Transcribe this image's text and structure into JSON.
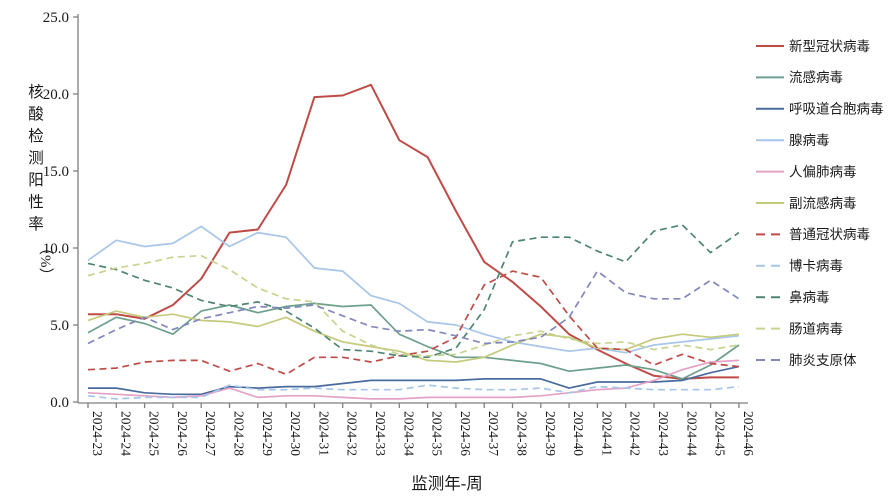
{
  "chart_data": {
    "type": "line",
    "title": "",
    "xlabel": "监测年-周",
    "ylabel": "核酸检测阳性率（%）",
    "ylabel_chars": [
      "核",
      "酸",
      "检",
      "测",
      "阳",
      "性",
      "率"
    ],
    "ylabel_unit": "（%）",
    "ylim": [
      0,
      25
    ],
    "ytick_values": [
      0,
      5,
      10,
      15,
      20,
      25
    ],
    "ytick_labels": [
      "0.0",
      "5.0",
      "10.0",
      "15.0",
      "20.0",
      "25.0"
    ],
    "grid": false,
    "legend_position": "right",
    "axis_color": "#7f7f7f",
    "categories": [
      "2024-23",
      "2024-24",
      "2024-25",
      "2024-26",
      "2024-27",
      "2024-28",
      "2024-29",
      "2024-30",
      "2024-31",
      "2024-32",
      "2024-33",
      "2024-34",
      "2024-35",
      "2024-36",
      "2024-37",
      "2024-38",
      "2024-39",
      "2024-40",
      "2024-41",
      "2024-42",
      "2024-43",
      "2024-44",
      "2024-45",
      "2024-46"
    ],
    "series": [
      {
        "name": "新型冠状病毒",
        "color": "#bf4b47",
        "style": "solid",
        "values": [
          5.7,
          5.7,
          5.4,
          6.3,
          8.0,
          11.0,
          11.2,
          14.1,
          19.8,
          19.9,
          20.6,
          17.0,
          15.9,
          12.4,
          9.1,
          7.8,
          6.2,
          4.4,
          3.4,
          2.5,
          1.7,
          1.5,
          1.6,
          1.6
        ]
      },
      {
        "name": "流感病毒",
        "color": "#6da08c",
        "style": "solid",
        "values": [
          4.5,
          5.5,
          5.1,
          4.4,
          5.9,
          6.3,
          5.8,
          6.2,
          6.4,
          6.2,
          6.3,
          4.4,
          3.6,
          2.9,
          2.9,
          2.7,
          2.5,
          2.0,
          2.2,
          2.4,
          2.1,
          1.5,
          2.4,
          3.7
        ]
      },
      {
        "name": "呼吸道合胞病毒",
        "color": "#4a6b9d",
        "style": "solid",
        "values": [
          0.9,
          0.9,
          0.6,
          0.5,
          0.5,
          1.0,
          0.9,
          1.0,
          1.0,
          1.2,
          1.4,
          1.4,
          1.4,
          1.4,
          1.5,
          1.5,
          1.5,
          0.9,
          1.3,
          1.3,
          1.3,
          1.4,
          1.9,
          2.3
        ]
      },
      {
        "name": "腺病毒",
        "color": "#a7c6e8",
        "style": "solid",
        "values": [
          9.2,
          10.5,
          10.1,
          10.3,
          11.4,
          10.1,
          11.0,
          10.7,
          8.7,
          8.5,
          6.9,
          6.4,
          5.2,
          5.0,
          4.4,
          3.9,
          3.6,
          3.3,
          3.5,
          3.2,
          3.7,
          3.9,
          4.1,
          4.3
        ]
      },
      {
        "name": "人偏肺病毒",
        "color": "#e3a2c6",
        "style": "solid",
        "values": [
          0.6,
          0.5,
          0.4,
          0.3,
          0.4,
          0.9,
          0.3,
          0.4,
          0.4,
          0.3,
          0.2,
          0.2,
          0.3,
          0.3,
          0.3,
          0.3,
          0.4,
          0.6,
          0.8,
          0.9,
          1.4,
          2.1,
          2.6,
          2.7
        ]
      },
      {
        "name": "副流感病毒",
        "color": "#c6ca7c",
        "style": "solid",
        "values": [
          5.3,
          5.9,
          5.5,
          5.7,
          5.3,
          5.2,
          4.9,
          5.5,
          4.6,
          3.9,
          3.6,
          3.3,
          2.7,
          2.6,
          2.9,
          3.7,
          4.4,
          4.2,
          3.5,
          3.4,
          4.1,
          4.4,
          4.2,
          4.4
        ]
      },
      {
        "name": "普通冠状病毒",
        "color": "#bf4b47",
        "style": "dashed",
        "values": [
          2.1,
          2.2,
          2.6,
          2.7,
          2.7,
          2.0,
          2.5,
          1.8,
          2.9,
          2.9,
          2.6,
          3.0,
          3.3,
          4.2,
          7.6,
          8.5,
          8.1,
          5.6,
          3.5,
          3.4,
          2.4,
          3.1,
          2.5,
          2.3
        ]
      },
      {
        "name": "博卡病毒",
        "color": "#a5c6e8",
        "style": "dashed",
        "values": [
          0.4,
          0.2,
          0.3,
          0.3,
          0.3,
          1.1,
          0.8,
          0.8,
          0.9,
          0.8,
          0.8,
          0.8,
          1.1,
          0.9,
          0.8,
          0.8,
          0.9,
          0.6,
          1.0,
          0.9,
          0.8,
          0.8,
          0.8,
          1.0
        ]
      },
      {
        "name": "鼻病毒",
        "color": "#4e8573",
        "style": "dashed",
        "values": [
          9.0,
          8.6,
          7.9,
          7.4,
          6.6,
          6.2,
          6.5,
          5.9,
          4.8,
          3.4,
          3.3,
          3.0,
          2.9,
          3.5,
          6.0,
          10.4,
          10.7,
          10.7,
          9.8,
          9.1,
          11.1,
          11.5,
          9.7,
          11.0
        ]
      },
      {
        "name": "肠道病毒",
        "color": "#c9d38f",
        "style": "dashed",
        "values": [
          8.2,
          8.7,
          9.0,
          9.4,
          9.5,
          8.6,
          7.4,
          6.7,
          6.5,
          4.6,
          3.7,
          3.1,
          3.0,
          3.1,
          3.7,
          4.3,
          4.6,
          4.1,
          3.8,
          3.9,
          3.4,
          3.7,
          3.4,
          3.7
        ]
      },
      {
        "name": "肺炎支原体",
        "color": "#8287bd",
        "style": "dashed",
        "values": [
          3.8,
          4.7,
          5.5,
          4.7,
          5.4,
          5.8,
          6.2,
          6.1,
          6.3,
          5.6,
          4.9,
          4.6,
          4.7,
          4.3,
          3.8,
          3.9,
          4.2,
          5.5,
          8.5,
          7.1,
          6.7,
          6.7,
          7.9,
          6.7
        ]
      }
    ]
  }
}
